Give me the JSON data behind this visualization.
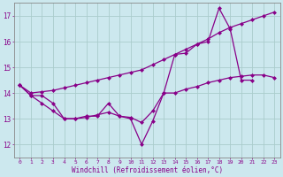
{
  "xlabel": "Windchill (Refroidissement éolien,°C)",
  "bg_color": "#cce8ee",
  "line_color": "#880088",
  "grid_color": "#aacccc",
  "ylim": [
    11.5,
    17.5
  ],
  "yticks": [
    12,
    13,
    14,
    15,
    16,
    17
  ],
  "x_labels": [
    "0",
    "1",
    "2",
    "3",
    "4",
    "5",
    "6",
    "7",
    "8",
    "9",
    "10",
    "11",
    "12",
    "13",
    "14",
    "15",
    "16",
    "17",
    "18",
    "19",
    "20",
    "21",
    "22",
    "23"
  ],
  "line1_x": [
    0,
    1,
    2,
    3,
    4,
    5,
    6,
    7,
    8,
    9,
    10,
    11,
    12,
    13,
    14,
    15,
    16,
    17,
    18,
    19,
    20,
    21
  ],
  "line1_y": [
    14.3,
    13.9,
    13.9,
    13.6,
    13.0,
    13.0,
    13.1,
    13.1,
    13.6,
    13.1,
    13.0,
    12.0,
    12.9,
    14.0,
    15.5,
    15.55,
    15.9,
    16.0,
    17.3,
    16.5,
    14.5,
    14.5
  ],
  "line2_x": [
    0,
    1,
    2,
    3,
    4,
    5,
    6,
    7,
    8,
    9,
    10,
    11,
    12,
    13,
    14,
    15,
    16,
    17,
    18,
    19,
    20,
    21,
    22,
    23
  ],
  "line2_y": [
    14.3,
    14.0,
    14.05,
    14.1,
    14.2,
    14.3,
    14.4,
    14.5,
    14.6,
    14.7,
    14.8,
    14.9,
    15.1,
    15.3,
    15.5,
    15.7,
    15.9,
    16.1,
    16.35,
    16.55,
    16.7,
    16.85,
    17.0,
    17.15
  ],
  "line3_x": [
    0,
    1,
    2,
    3,
    4,
    5,
    6,
    7,
    8,
    9,
    10,
    11,
    12,
    13,
    14,
    15,
    16,
    17,
    18,
    19,
    20,
    21,
    22,
    23
  ],
  "line3_y": [
    14.3,
    13.9,
    13.6,
    13.3,
    13.0,
    13.0,
    13.05,
    13.15,
    13.25,
    13.1,
    13.05,
    12.85,
    13.3,
    14.0,
    14.0,
    14.15,
    14.25,
    14.4,
    14.5,
    14.6,
    14.65,
    14.7,
    14.7,
    14.6
  ]
}
